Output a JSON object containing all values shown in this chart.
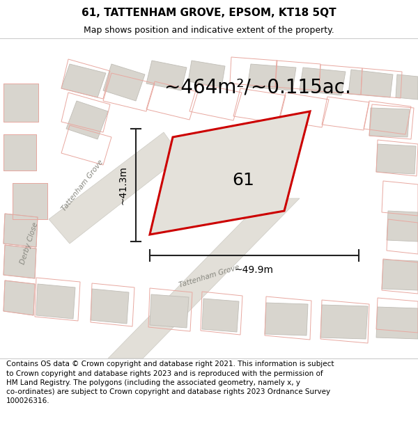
{
  "title": "61, TATTENHAM GROVE, EPSOM, KT18 5QT",
  "subtitle": "Map shows position and indicative extent of the property.",
  "area_text": "~464m²/~0.115ac.",
  "label_61": "61",
  "dim_height": "~41.3m",
  "dim_width": "~49.9m",
  "road_label_tattenham1": "Tattenham Grove",
  "road_label_tattenham2": "Tattenham Grove",
  "road_label_derby": "Derby Close",
  "footer": "Contains OS data © Crown copyright and database right 2021. This information is subject to Crown copyright and database rights 2023 and is reproduced with the permission of HM Land Registry. The polygons (including the associated geometry, namely x, y co-ordinates) are subject to Crown copyright and database rights 2023 Ordnance Survey 100026316.",
  "map_bg": "#f0eeea",
  "building_fill": "#d8d5ce",
  "building_edge": "#c0bdb6",
  "road_fill": "#e2dfd8",
  "road_edge": "#cccac3",
  "red_prop": "#cc0000",
  "prop_fill": "#e4e1da",
  "dim_color": "#222222",
  "road_text_color": "#888880",
  "title_fontsize": 11,
  "subtitle_fontsize": 9,
  "area_fontsize": 20,
  "label_fontsize": 18,
  "dim_fontsize": 10,
  "road_fontsize": 7.5,
  "footer_fontsize": 7.5
}
